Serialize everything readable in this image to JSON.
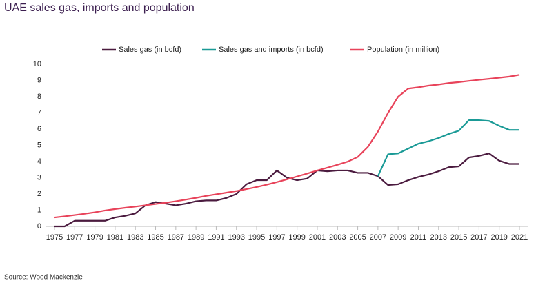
{
  "chart_data": {
    "type": "line",
    "title": "UAE sales gas, imports and population",
    "source": "Source: Wood Mackenzie",
    "x": [
      1975,
      1976,
      1977,
      1978,
      1979,
      1980,
      1981,
      1982,
      1983,
      1984,
      1985,
      1986,
      1987,
      1988,
      1989,
      1990,
      1991,
      1992,
      1993,
      1994,
      1995,
      1996,
      1997,
      1998,
      1999,
      2000,
      2001,
      2002,
      2003,
      2004,
      2005,
      2006,
      2007,
      2008,
      2009,
      2010,
      2011,
      2012,
      2013,
      2014,
      2015,
      2016,
      2017,
      2018,
      2019,
      2020,
      2021
    ],
    "xlim": [
      1975,
      2021
    ],
    "xticks": [
      1975,
      1977,
      1979,
      1981,
      1983,
      1985,
      1987,
      1989,
      1991,
      1993,
      1995,
      1997,
      1999,
      2001,
      2003,
      2005,
      2007,
      2009,
      2011,
      2013,
      2015,
      2017,
      2019,
      2021
    ],
    "ylim": [
      0,
      10
    ],
    "yticks": [
      0,
      1,
      2,
      3,
      4,
      5,
      6,
      7,
      8,
      9,
      10
    ],
    "grid": false,
    "legend": "top",
    "series": [
      {
        "name": "Sales gas (in bcfd)",
        "color": "#4b1b3f",
        "values": [
          0,
          0,
          0.35,
          0.35,
          0.35,
          0.35,
          0.55,
          0.65,
          0.8,
          1.3,
          1.5,
          1.4,
          1.3,
          1.4,
          1.55,
          1.6,
          1.6,
          1.75,
          2.0,
          2.6,
          2.85,
          2.85,
          3.45,
          3.0,
          2.85,
          2.95,
          3.45,
          3.4,
          3.45,
          3.45,
          3.3,
          3.3,
          3.1,
          2.55,
          2.6,
          2.85,
          3.05,
          3.2,
          3.4,
          3.65,
          3.7,
          4.25,
          4.35,
          4.5,
          4.05,
          3.85,
          3.85
        ]
      },
      {
        "name": "Sales gas and imports (in bcfd)",
        "color": "#1a9a96",
        "values": [
          null,
          null,
          null,
          null,
          null,
          null,
          null,
          null,
          null,
          null,
          null,
          null,
          null,
          null,
          null,
          null,
          null,
          null,
          null,
          null,
          null,
          null,
          null,
          null,
          null,
          null,
          null,
          null,
          null,
          null,
          null,
          null,
          3.1,
          4.45,
          4.5,
          4.8,
          5.1,
          5.25,
          5.45,
          5.7,
          5.9,
          6.55,
          6.55,
          6.5,
          6.2,
          5.95,
          5.95
        ]
      },
      {
        "name": "Population (in million)",
        "color": "#e8435a",
        "values": [
          0.55,
          0.62,
          0.7,
          0.78,
          0.87,
          0.98,
          1.07,
          1.15,
          1.22,
          1.3,
          1.38,
          1.46,
          1.55,
          1.65,
          1.76,
          1.88,
          1.98,
          2.08,
          2.18,
          2.3,
          2.43,
          2.57,
          2.73,
          2.9,
          3.08,
          3.26,
          3.45,
          3.62,
          3.8,
          3.99,
          4.28,
          4.9,
          5.85,
          7.0,
          8.0,
          8.5,
          8.58,
          8.68,
          8.75,
          8.84,
          8.9,
          8.97,
          9.04,
          9.1,
          9.17,
          9.24,
          9.35
        ]
      }
    ]
  }
}
